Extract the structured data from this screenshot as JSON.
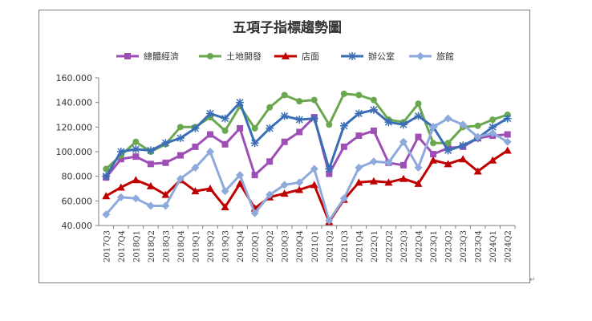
{
  "chart_data": {
    "type": "line",
    "title": "五項子指標趨勢圖",
    "xlabel": "",
    "ylabel": "",
    "ylim": [
      40,
      160
    ],
    "yticks": [
      "40.000",
      "60.000",
      "80.000",
      "100.000",
      "120.000",
      "140.000",
      "160.000"
    ],
    "grid": false,
    "legend": "top",
    "categories": [
      "2017Q3",
      "2017Q4",
      "2018Q1",
      "2018Q2",
      "2018Q3",
      "2018Q4",
      "2019Q1",
      "2019Q2",
      "2019Q3",
      "2019Q4",
      "2020Q1",
      "2020Q2",
      "2020Q3",
      "2020Q4",
      "2021Q1",
      "2021Q2",
      "2021Q3",
      "2021Q4",
      "2022Q1",
      "2022Q2",
      "2022Q3",
      "2022Q4",
      "2023Q1",
      "2023Q2",
      "2023Q3",
      "2023Q4",
      "2024Q1",
      "2024Q2"
    ],
    "series": [
      {
        "name": "總體經濟",
        "color": "#9e4fb6",
        "marker": "square",
        "values": [
          79,
          94,
          96,
          90,
          91,
          97,
          104,
          114,
          106,
          119,
          81,
          92,
          108,
          116,
          128,
          82,
          104,
          113,
          117,
          91,
          89,
          112,
          98,
          103,
          104,
          111,
          113,
          114
        ]
      },
      {
        "name": "土地開發",
        "color": "#6aa84f",
        "marker": "circle",
        "values": [
          86,
          97,
          108,
          100,
          106,
          120,
          120,
          128,
          117,
          137,
          119,
          136,
          146,
          141,
          142,
          122,
          147,
          146,
          142,
          126,
          124,
          139,
          107,
          107,
          120,
          121,
          126,
          130
        ]
      },
      {
        "name": "店面",
        "color": "#c00000",
        "marker": "triangle",
        "values": [
          64,
          71,
          77,
          72,
          65,
          77,
          68,
          70,
          55,
          74,
          54,
          63,
          66,
          69,
          73,
          43,
          61,
          75,
          76,
          75,
          78,
          74,
          93,
          90,
          94,
          84,
          93,
          101
        ]
      },
      {
        "name": "辦公室",
        "color": "#3a6eb5",
        "marker": "star",
        "values": [
          80,
          100,
          102,
          101,
          107,
          111,
          119,
          131,
          127,
          140,
          107,
          119,
          129,
          126,
          127,
          86,
          121,
          131,
          134,
          124,
          122,
          129,
          120,
          101,
          105,
          111,
          120,
          127
        ]
      },
      {
        "name": "旅館",
        "color": "#8ea9db",
        "marker": "diamond",
        "values": [
          49,
          63,
          62,
          56,
          56,
          78,
          87,
          100,
          68,
          81,
          50,
          65,
          73,
          75,
          86,
          44,
          62,
          87,
          92,
          91,
          108,
          87,
          120,
          127,
          122,
          112,
          115,
          108
        ]
      }
    ]
  }
}
